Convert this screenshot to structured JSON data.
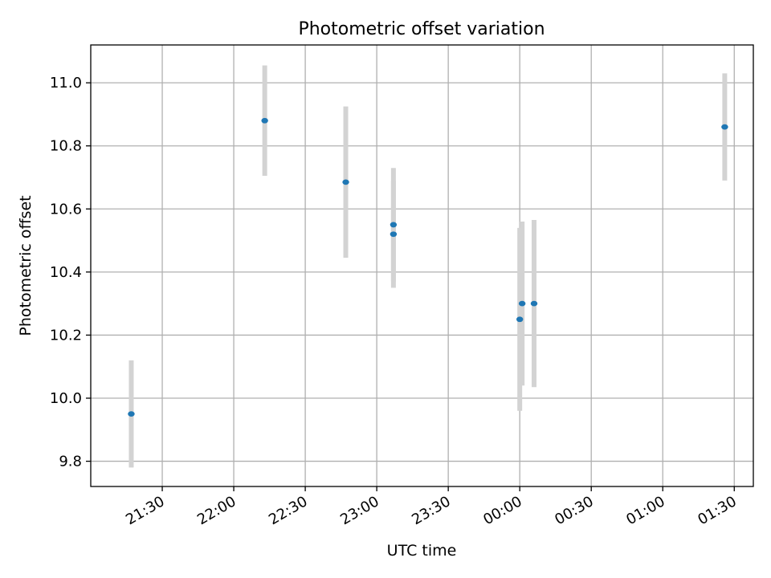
{
  "chart_data": {
    "type": "scatter",
    "title": "Photometric offset variation",
    "xlabel": "UTC time",
    "ylabel": "Photometric offset",
    "x_ticks": [
      "21:30",
      "22:00",
      "22:30",
      "23:00",
      "23:30",
      "00:00",
      "00:30",
      "01:00",
      "01:30"
    ],
    "x_tick_hours": [
      21.5,
      22.0,
      22.5,
      23.0,
      23.5,
      24.0,
      24.5,
      25.0,
      25.5
    ],
    "y_ticks": [
      "9.8",
      "10.0",
      "10.2",
      "10.4",
      "10.6",
      "10.8",
      "11.0"
    ],
    "y_tick_values": [
      9.8,
      10.0,
      10.2,
      10.4,
      10.6,
      10.8,
      11.0
    ],
    "xlim": [
      "21:00",
      "01:38"
    ],
    "ylim": [
      9.72,
      11.12
    ],
    "grid": true,
    "point_color": "#1f77b4",
    "errorbar_color": "#d3d3d3",
    "points": [
      {
        "time": "21:17",
        "y": 9.95,
        "err": 0.17
      },
      {
        "time": "22:13",
        "y": 10.88,
        "err": 0.175
      },
      {
        "time": "22:47",
        "y": 10.685,
        "err": 0.24
      },
      {
        "time": "23:07",
        "y": 10.55,
        "err": 0.18
      },
      {
        "time": "23:07",
        "y": 10.52,
        "err": 0.17
      },
      {
        "time": "00:00",
        "y": 10.25,
        "err": 0.29
      },
      {
        "time": "00:01",
        "y": 10.3,
        "err": 0.26
      },
      {
        "time": "00:06",
        "y": 10.3,
        "err": 0.265
      },
      {
        "time": "01:26",
        "y": 10.86,
        "err": 0.17
      }
    ]
  }
}
